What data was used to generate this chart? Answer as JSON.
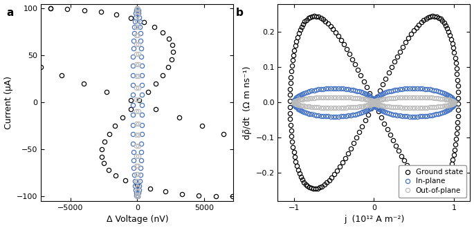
{
  "panel_a_label": "a",
  "panel_b_label": "b",
  "panel_a_xlabel": "Δ Voltage (nV)",
  "panel_a_ylabel": "Current (μA)",
  "panel_b_xlabel": "j  (10¹² A m⁻²)",
  "panel_b_ylabel": "dρ̃/dt  (Ω m ns⁻¹)",
  "panel_a_xlim": [
    -7200,
    7200
  ],
  "panel_a_ylim": [
    -105,
    105
  ],
  "panel_a_xticks": [
    -5000,
    0,
    5000
  ],
  "panel_a_yticks": [
    -100,
    -50,
    0,
    50,
    100
  ],
  "panel_b_xlim": [
    -1.2,
    1.2
  ],
  "panel_b_ylim": [
    -0.28,
    0.28
  ],
  "panel_b_xticks": [
    -1,
    0,
    1
  ],
  "panel_b_yticks": [
    -0.2,
    -0.1,
    0,
    0.1,
    0.2
  ],
  "black_color": "#000000",
  "blue_color": "#4472C4",
  "gray_color": "#bbbbbb",
  "ms": 4.5,
  "mew": 0.9,
  "lfs": 9,
  "tfs": 8,
  "plfs": 11,
  "legend_labels": [
    "Ground state",
    "In-plane",
    "Out-of-plane"
  ],
  "figsize": [
    6.85,
    3.3
  ],
  "dpi": 100
}
